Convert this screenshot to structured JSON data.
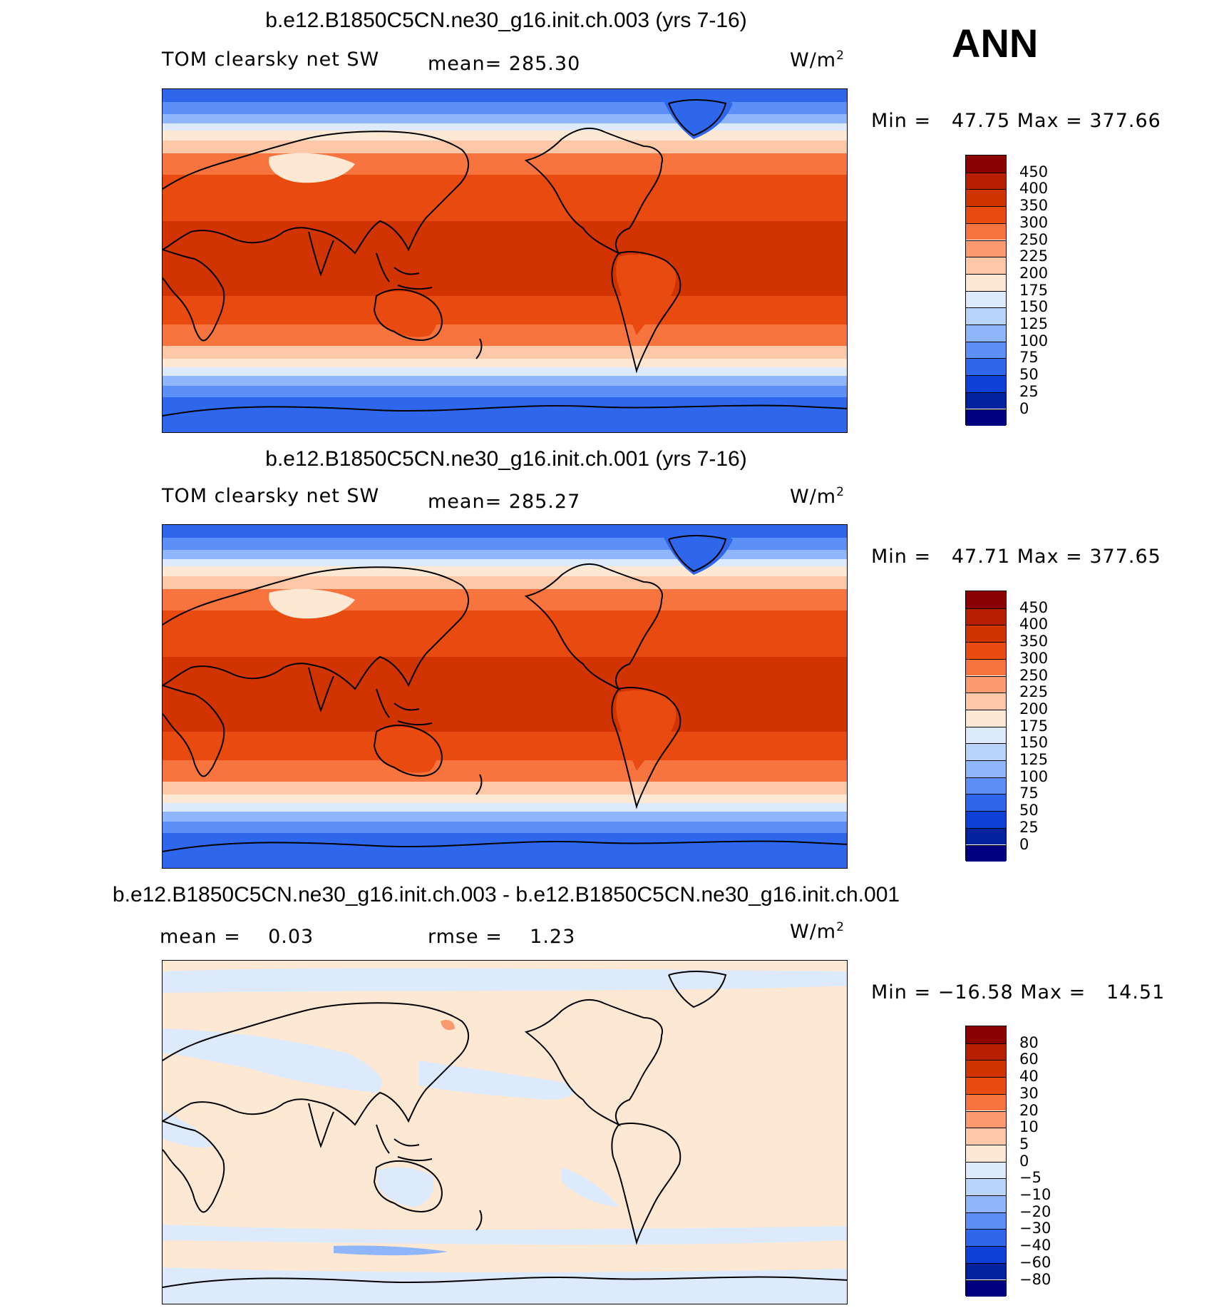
{
  "season": "ANN",
  "panels": [
    {
      "title": "b.e12.B1850C5CN.ne30_g16.init.ch.003 (yrs 7-16)",
      "left_label": "TOM clearsky net SW",
      "center_label": "mean= 285.30",
      "units": "W/m",
      "units_sup": "2",
      "minmax": "Min =   47.75 Max = 377.66",
      "colorbar": {
        "labels": [
          "450",
          "400",
          "350",
          "300",
          "250",
          "225",
          "200",
          "175",
          "150",
          "125",
          "100",
          "75",
          "50",
          "25",
          "0"
        ],
        "colors": [
          "#8b0000",
          "#b81e00",
          "#d13400",
          "#e84a10",
          "#f7743e",
          "#fa9a6e",
          "#fdc8a8",
          "#fde8d4",
          "#dceafc",
          "#b9d4fb",
          "#8fb6fa",
          "#5c90f6",
          "#2e66ec",
          "#0e3fd6",
          "#03229e",
          "#000080"
        ]
      }
    },
    {
      "title": "b.e12.B1850C5CN.ne30_g16.init.ch.001 (yrs 7-16)",
      "left_label": "TOM clearsky net SW",
      "center_label": "mean= 285.27",
      "units": "W/m",
      "units_sup": "2",
      "minmax": "Min =   47.71 Max = 377.65",
      "colorbar": {
        "labels": [
          "450",
          "400",
          "350",
          "300",
          "250",
          "225",
          "200",
          "175",
          "150",
          "125",
          "100",
          "75",
          "50",
          "25",
          "0"
        ],
        "colors": [
          "#8b0000",
          "#b81e00",
          "#d13400",
          "#e84a10",
          "#f7743e",
          "#fa9a6e",
          "#fdc8a8",
          "#fde8d4",
          "#dceafc",
          "#b9d4fb",
          "#8fb6fa",
          "#5c90f6",
          "#2e66ec",
          "#0e3fd6",
          "#03229e",
          "#000080"
        ]
      }
    },
    {
      "title": "b.e12.B1850C5CN.ne30_g16.init.ch.003 - b.e12.B1850C5CN.ne30_g16.init.ch.001",
      "left_label": "mean =    0.03",
      "center_label": "rmse =    1.23",
      "units": "W/m",
      "units_sup": "2",
      "minmax": "Min = −16.58 Max =   14.51",
      "colorbar": {
        "labels": [
          "80",
          "60",
          "40",
          "30",
          "20",
          "10",
          "5",
          "0",
          "−5",
          "−10",
          "−20",
          "−30",
          "−40",
          "−60",
          "−80"
        ],
        "colors": [
          "#8b0000",
          "#b81e00",
          "#d13400",
          "#e84a10",
          "#f7743e",
          "#fa9a6e",
          "#fdc8a8",
          "#fde8d4",
          "#dceafc",
          "#b9d4fb",
          "#8fb6fa",
          "#5c90f6",
          "#2e66ec",
          "#0e3fd6",
          "#03229e",
          "#000080"
        ]
      }
    }
  ]
}
